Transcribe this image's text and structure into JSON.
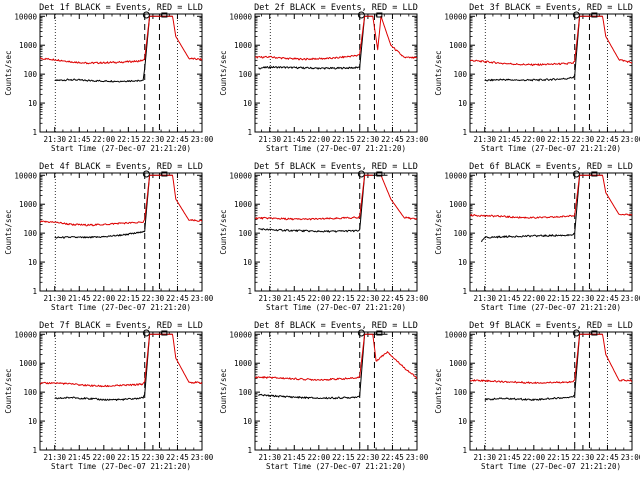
{
  "figure": {
    "xlabel": "Start Time (27-Dec-07 21:21:20)",
    "ylabel": "Counts/sec",
    "x_ticks": [
      "21:30",
      "21:45",
      "22:00",
      "22:15",
      "22:30",
      "22:45",
      "23:00"
    ],
    "y_ticks": [
      "1",
      "10",
      "100",
      "1000",
      "10000"
    ],
    "colors": {
      "events": "#000000",
      "lld": "#dd0000",
      "axes": "#000000",
      "background": "#ffffff"
    }
  },
  "chart_data": [
    {
      "type": "line",
      "title": "Det 1f BLACK = Events, RED = LLD",
      "xlabel": "Start Time (27-Dec-07 21:21:20)",
      "ylabel": "Counts/sec",
      "x_ticks": [
        "21:30",
        "21:45",
        "22:00",
        "22:15",
        "22:30",
        "22:45",
        "23:00"
      ],
      "y_ticks": [
        "1",
        "10",
        "100",
        "1000",
        "10000"
      ],
      "yscale": "log",
      "xlim": [
        "21:21",
        "23:00"
      ],
      "ylim": [
        1,
        12000
      ],
      "series": [
        {
          "name": "BLACK = Events",
          "color": "#000000",
          "x": [
            "21:30",
            "21:40",
            "21:50",
            "22:00",
            "22:10",
            "22:20",
            "22:24",
            "22:25",
            "22:28",
            "22:42",
            "22:44",
            "22:52",
            "23:00"
          ],
          "y": [
            60,
            65,
            60,
            58,
            57,
            60,
            62,
            150,
            10000,
            10000,
            null,
            null,
            null
          ]
        },
        {
          "name": "RED = LLD",
          "color": "#dd0000",
          "x": [
            "21:21",
            "21:30",
            "21:40",
            "21:50",
            "22:00",
            "22:10",
            "22:20",
            "22:24",
            "22:25",
            "22:28",
            "22:42",
            "22:44",
            "22:52",
            "23:00"
          ],
          "y": [
            350,
            320,
            270,
            240,
            250,
            260,
            280,
            300,
            350,
            10000,
            10000,
            2000,
            350,
            320
          ]
        }
      ]
    },
    {
      "type": "line",
      "title": "Det 2f BLACK = Events, RED = LLD",
      "xlabel": "Start Time (27-Dec-07 21:21:20)",
      "ylabel": "Counts/sec",
      "x_ticks": [
        "21:30",
        "21:45",
        "22:00",
        "22:15",
        "22:30",
        "22:45",
        "23:00"
      ],
      "y_ticks": [
        "1",
        "10",
        "100",
        "1000",
        "10000"
      ],
      "yscale": "log",
      "xlim": [
        "21:21",
        "23:00"
      ],
      "ylim": [
        1,
        12000
      ],
      "series": [
        {
          "name": "BLACK = Events",
          "color": "#000000",
          "x": [
            "21:23",
            "21:30",
            "21:40",
            "21:50",
            "22:00",
            "22:10",
            "22:20",
            "22:24",
            "22:25",
            "22:28",
            "22:33",
            "22:36",
            "22:38",
            "22:44",
            "22:52",
            "23:00"
          ],
          "y": [
            160,
            175,
            170,
            165,
            160,
            160,
            165,
            170,
            175,
            10000,
            10000,
            null,
            null,
            null,
            null,
            null
          ]
        },
        {
          "name": "RED = LLD",
          "color": "#dd0000",
          "x": [
            "21:21",
            "21:30",
            "21:40",
            "21:50",
            "22:00",
            "22:10",
            "22:20",
            "22:24",
            "22:25",
            "22:28",
            "22:33",
            "22:36",
            "22:38",
            "22:44",
            "22:52",
            "23:00"
          ],
          "y": [
            380,
            390,
            350,
            330,
            340,
            360,
            420,
            450,
            500,
            10000,
            10000,
            700,
            10000,
            1000,
            380,
            360
          ]
        }
      ]
    },
    {
      "type": "line",
      "title": "Det 3f BLACK = Events, RED = LLD",
      "xlabel": "Start Time (27-Dec-07 21:21:20)",
      "ylabel": "Counts/sec",
      "x_ticks": [
        "21:30",
        "21:45",
        "22:00",
        "22:15",
        "22:30",
        "22:45",
        "23:00"
      ],
      "y_ticks": [
        "1",
        "10",
        "100",
        "1000",
        "10000"
      ],
      "yscale": "log",
      "xlim": [
        "21:21",
        "23:00"
      ],
      "ylim": [
        1,
        12000
      ],
      "series": [
        {
          "name": "BLACK = Events",
          "color": "#000000",
          "x": [
            "21:30",
            "21:40",
            "21:50",
            "22:00",
            "22:10",
            "22:20",
            "22:24",
            "22:25",
            "22:28",
            "22:42",
            "22:44",
            "22:52",
            "23:00"
          ],
          "y": [
            60,
            65,
            62,
            62,
            65,
            70,
            78,
            90,
            10000,
            10000,
            null,
            null,
            null
          ]
        },
        {
          "name": "RED = LLD",
          "color": "#dd0000",
          "x": [
            "21:21",
            "21:30",
            "21:40",
            "21:50",
            "22:00",
            "22:10",
            "22:20",
            "22:24",
            "22:25",
            "22:28",
            "22:42",
            "22:44",
            "22:52",
            "23:00"
          ],
          "y": [
            300,
            270,
            240,
            220,
            210,
            220,
            230,
            240,
            280,
            10000,
            10000,
            2000,
            320,
            250
          ]
        }
      ]
    },
    {
      "type": "line",
      "title": "Det 4f BLACK = Events, RED = LLD",
      "xlabel": "Start Time (27-Dec-07 21:21:20)",
      "ylabel": "Counts/sec",
      "x_ticks": [
        "21:30",
        "21:45",
        "22:00",
        "22:15",
        "22:30",
        "22:45",
        "23:00"
      ],
      "y_ticks": [
        "1",
        "10",
        "100",
        "1000",
        "10000"
      ],
      "yscale": "log",
      "xlim": [
        "21:21",
        "23:00"
      ],
      "ylim": [
        1,
        12000
      ],
      "series": [
        {
          "name": "BLACK = Events",
          "color": "#000000",
          "x": [
            "21:30",
            "21:40",
            "21:50",
            "22:00",
            "22:10",
            "22:20",
            "22:24",
            "22:25",
            "22:28",
            "22:42",
            "22:44",
            "22:52",
            "23:00"
          ],
          "y": [
            70,
            72,
            70,
            75,
            85,
            100,
            110,
            120,
            10000,
            10000,
            null,
            null,
            null
          ]
        },
        {
          "name": "RED = LLD",
          "color": "#dd0000",
          "x": [
            "21:21",
            "21:30",
            "21:40",
            "21:50",
            "22:00",
            "22:10",
            "22:20",
            "22:24",
            "22:25",
            "22:28",
            "22:42",
            "22:44",
            "22:52",
            "23:00"
          ],
          "y": [
            250,
            240,
            200,
            190,
            200,
            220,
            230,
            240,
            280,
            10000,
            10000,
            1500,
            280,
            260
          ]
        }
      ]
    },
    {
      "type": "line",
      "title": "Det 5f BLACK = Events, RED = LLD",
      "xlabel": "Start Time (27-Dec-07 21:21:20)",
      "ylabel": "Counts/sec",
      "x_ticks": [
        "21:30",
        "21:45",
        "22:00",
        "22:15",
        "22:30",
        "22:45",
        "23:00"
      ],
      "y_ticks": [
        "1",
        "10",
        "100",
        "1000",
        "10000"
      ],
      "yscale": "log",
      "xlim": [
        "21:21",
        "23:00"
      ],
      "ylim": [
        1,
        12000
      ],
      "series": [
        {
          "name": "BLACK = Events",
          "color": "#000000",
          "x": [
            "21:23",
            "21:30",
            "21:40",
            "21:50",
            "22:00",
            "22:10",
            "22:20",
            "22:24",
            "22:25",
            "22:28",
            "22:42",
            "22:44",
            "22:52",
            "23:00"
          ],
          "y": [
            140,
            130,
            125,
            120,
            115,
            115,
            120,
            120,
            125,
            10000,
            10000,
            null,
            null,
            null
          ]
        },
        {
          "name": "RED = LLD",
          "color": "#dd0000",
          "x": [
            "21:21",
            "21:30",
            "21:40",
            "21:50",
            "22:00",
            "22:10",
            "22:20",
            "22:24",
            "22:25",
            "22:28",
            "22:33",
            "22:36",
            "22:38",
            "22:44",
            "22:52",
            "23:00"
          ],
          "y": [
            330,
            330,
            310,
            300,
            310,
            320,
            340,
            350,
            370,
            10000,
            10000,
            null,
            10000,
            1500,
            350,
            300
          ]
        }
      ]
    },
    {
      "type": "line",
      "title": "Det 6f BLACK = Events, RED = LLD",
      "xlabel": "Start Time (27-Dec-07 21:21:20)",
      "ylabel": "Counts/sec",
      "x_ticks": [
        "21:30",
        "21:45",
        "22:00",
        "22:15",
        "22:30",
        "22:45",
        "23:00"
      ],
      "y_ticks": [
        "1",
        "10",
        "100",
        "1000",
        "10000"
      ],
      "yscale": "log",
      "xlim": [
        "21:21",
        "23:00"
      ],
      "ylim": [
        1,
        12000
      ],
      "series": [
        {
          "name": "BLACK = Events",
          "color": "#000000",
          "x": [
            "21:28",
            "21:30",
            "21:40",
            "21:50",
            "22:00",
            "22:10",
            "22:20",
            "22:24",
            "22:25",
            "22:28",
            "22:42",
            "22:44",
            "22:52",
            "23:00"
          ],
          "y": [
            50,
            70,
            75,
            78,
            80,
            82,
            85,
            90,
            100,
            10000,
            10000,
            null,
            null,
            null
          ]
        },
        {
          "name": "RED = LLD",
          "color": "#dd0000",
          "x": [
            "21:21",
            "21:30",
            "21:40",
            "21:50",
            "22:00",
            "22:10",
            "22:20",
            "22:24",
            "22:25",
            "22:28",
            "22:42",
            "22:44",
            "22:52",
            "23:00"
          ],
          "y": [
            420,
            400,
            380,
            350,
            340,
            350,
            380,
            400,
            420,
            10000,
            10000,
            2500,
            450,
            420
          ]
        }
      ]
    },
    {
      "type": "line",
      "title": "Det 7f BLACK = Events, RED = LLD",
      "xlabel": "Start Time (27-Dec-07 21:21:20)",
      "ylabel": "Counts/sec",
      "x_ticks": [
        "21:30",
        "21:45",
        "22:00",
        "22:15",
        "22:30",
        "22:45",
        "23:00"
      ],
      "y_ticks": [
        "1",
        "10",
        "100",
        "1000",
        "10000"
      ],
      "yscale": "log",
      "xlim": [
        "21:21",
        "23:00"
      ],
      "ylim": [
        1,
        12000
      ],
      "series": [
        {
          "name": "BLACK = Events",
          "color": "#000000",
          "x": [
            "21:30",
            "21:40",
            "21:50",
            "22:00",
            "22:10",
            "22:20",
            "22:24",
            "22:25",
            "22:28",
            "22:42",
            "22:44",
            "22:52",
            "23:00"
          ],
          "y": [
            60,
            65,
            60,
            55,
            55,
            60,
            65,
            80,
            10000,
            10000,
            null,
            null,
            null
          ]
        },
        {
          "name": "RED = LLD",
          "color": "#dd0000",
          "x": [
            "21:21",
            "21:30",
            "21:40",
            "21:50",
            "22:00",
            "22:10",
            "22:20",
            "22:24",
            "22:25",
            "22:28",
            "22:42",
            "22:44",
            "22:52",
            "23:00"
          ],
          "y": [
            200,
            210,
            190,
            170,
            160,
            170,
            180,
            190,
            220,
            10000,
            10000,
            1500,
            220,
            210
          ]
        }
      ]
    },
    {
      "type": "line",
      "title": "Det 8f BLACK = Events, RED = LLD",
      "xlabel": "Start Time (27-Dec-07 21:21:20)",
      "ylabel": "Counts/sec",
      "x_ticks": [
        "21:30",
        "21:45",
        "22:00",
        "22:15",
        "22:30",
        "22:45",
        "23:00"
      ],
      "y_ticks": [
        "1",
        "10",
        "100",
        "1000",
        "10000"
      ],
      "yscale": "log",
      "xlim": [
        "21:21",
        "23:00"
      ],
      "ylim": [
        1,
        12000
      ],
      "series": [
        {
          "name": "BLACK = Events",
          "color": "#000000",
          "x": [
            "21:23",
            "21:30",
            "21:40",
            "21:50",
            "22:00",
            "22:10",
            "22:20",
            "22:24",
            "22:25",
            "22:28",
            "22:42",
            "22:44",
            "22:52",
            "23:00"
          ],
          "y": [
            80,
            75,
            70,
            65,
            62,
            63,
            65,
            70,
            75,
            10000,
            10000,
            null,
            null,
            null
          ]
        },
        {
          "name": "RED = LLD",
          "color": "#dd0000",
          "x": [
            "21:21",
            "21:30",
            "21:40",
            "21:50",
            "22:00",
            "22:10",
            "22:20",
            "22:24",
            "22:25",
            "22:28",
            "22:33",
            "22:35",
            "22:42",
            "22:50",
            "23:00"
          ],
          "y": [
            330,
            320,
            300,
            280,
            270,
            280,
            300,
            310,
            340,
            10000,
            10000,
            1200,
            2500,
            900,
            300
          ]
        }
      ]
    },
    {
      "type": "line",
      "title": "Det 9f BLACK = Events, RED = LLD",
      "xlabel": "Start Time (27-Dec-07 21:21:20)",
      "ylabel": "Counts/sec",
      "x_ticks": [
        "21:30",
        "21:45",
        "22:00",
        "22:15",
        "22:30",
        "22:45",
        "23:00"
      ],
      "y_ticks": [
        "1",
        "10",
        "100",
        "1000",
        "10000"
      ],
      "yscale": "log",
      "xlim": [
        "21:21",
        "23:00"
      ],
      "ylim": [
        1,
        12000
      ],
      "series": [
        {
          "name": "BLACK = Events",
          "color": "#000000",
          "x": [
            "21:30",
            "21:40",
            "21:50",
            "22:00",
            "22:10",
            "22:20",
            "22:24",
            "22:25",
            "22:28",
            "22:42",
            "22:44",
            "22:52",
            "23:00"
          ],
          "y": [
            55,
            60,
            58,
            55,
            60,
            65,
            70,
            85,
            10000,
            10000,
            null,
            null,
            null
          ]
        },
        {
          "name": "RED = LLD",
          "color": "#dd0000",
          "x": [
            "21:21",
            "21:30",
            "21:40",
            "21:50",
            "22:00",
            "22:10",
            "22:20",
            "22:24",
            "22:25",
            "22:28",
            "22:42",
            "22:44",
            "22:52",
            "23:00"
          ],
          "y": [
            260,
            250,
            230,
            220,
            210,
            215,
            225,
            230,
            260,
            10000,
            10000,
            2000,
            260,
            250
          ]
        }
      ]
    }
  ]
}
